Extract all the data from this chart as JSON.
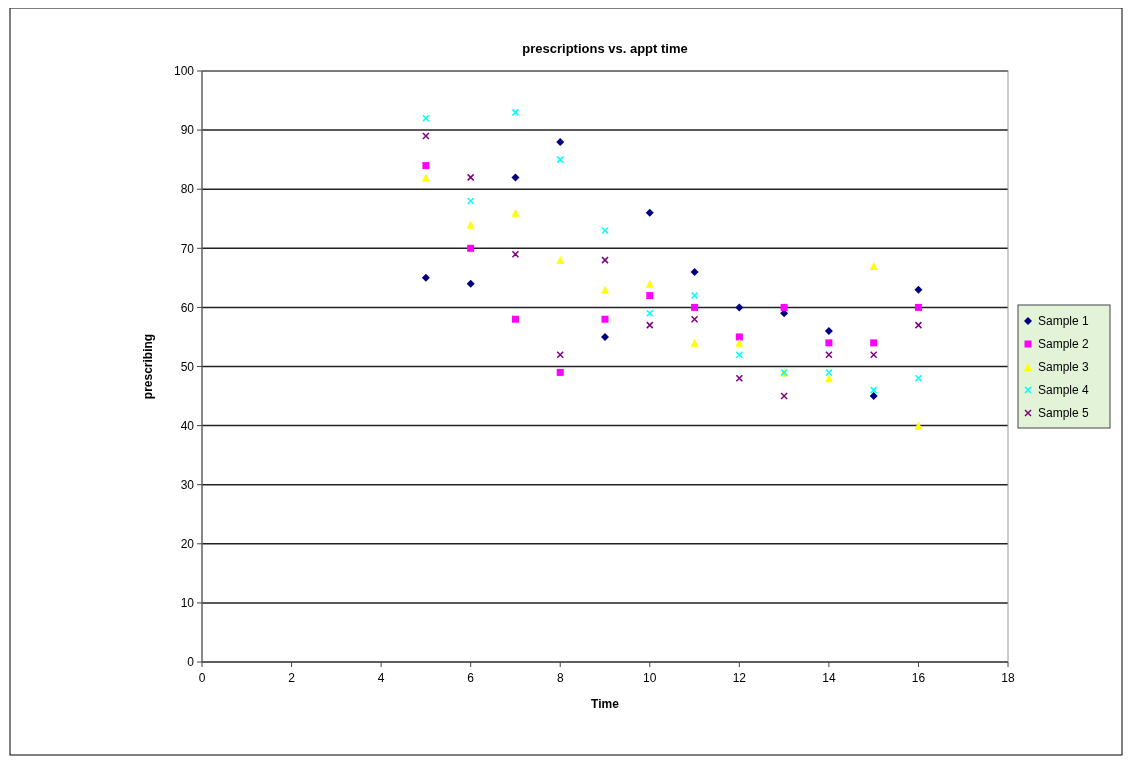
{
  "chart_data": {
    "type": "scatter",
    "title": "prescriptions vs. appt time",
    "xlabel": "Time",
    "ylabel": "prescribing",
    "x": [
      5,
      6,
      7,
      8,
      9,
      10,
      11,
      12,
      13,
      14,
      15,
      16
    ],
    "series": [
      {
        "name": "Sample 1",
        "color": "#000080",
        "marker": "diamond",
        "values": [
          65,
          64,
          82,
          88,
          55,
          76,
          66,
          60,
          59,
          56,
          45,
          63
        ]
      },
      {
        "name": "Sample 2",
        "color": "#ff00ff",
        "marker": "square",
        "values": [
          84,
          70,
          58,
          49,
          58,
          62,
          60,
          55,
          60,
          54,
          54,
          60
        ]
      },
      {
        "name": "Sample 3",
        "color": "#ffff00",
        "marker": "triangle",
        "values": [
          82,
          74,
          76,
          68,
          63,
          64,
          54,
          54,
          49,
          48,
          67,
          40
        ]
      },
      {
        "name": "Sample 4",
        "color": "#00ffff",
        "marker": "cross",
        "values": [
          92,
          78,
          93,
          85,
          73,
          59,
          62,
          52,
          49,
          49,
          46,
          48
        ]
      },
      {
        "name": "Sample 5",
        "color": "#800080",
        "marker": "cross",
        "values": [
          89,
          82,
          69,
          52,
          68,
          57,
          58,
          48,
          45,
          52,
          52,
          57
        ]
      }
    ],
    "xlim": [
      0,
      18
    ],
    "xticks": [
      0,
      2,
      4,
      6,
      8,
      10,
      12,
      14,
      16,
      18
    ],
    "ylim": [
      0,
      100
    ],
    "yticks": [
      0,
      10,
      20,
      30,
      40,
      50,
      60,
      70,
      80,
      90,
      100
    ],
    "grid": "y",
    "legend": "right"
  }
}
